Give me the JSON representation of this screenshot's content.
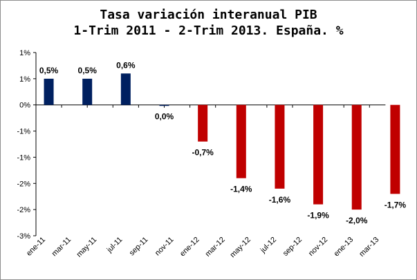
{
  "chart_data": {
    "type": "bar",
    "title_line1": "Tasa variación interanual PIB",
    "title_line2": "1-Trim 2011 - 2-Trim 2013. España. %",
    "xlabel": "",
    "ylabel": "",
    "categories": [
      "ene-11",
      "mar-11",
      "may-11",
      "jul-11",
      "sep-11",
      "nov-11",
      "ene-12",
      "mar-12",
      "may-12",
      "jul-12",
      "sep-12",
      "nov-12",
      "ene-13",
      "mar-13"
    ],
    "bars": [
      {
        "category_index": 0.5,
        "value": 0.5,
        "label": "0,5%"
      },
      {
        "category_index": 2.0,
        "value": 0.5,
        "label": "0,5%"
      },
      {
        "category_index": 3.5,
        "value": 0.6,
        "label": "0,6%"
      },
      {
        "category_index": 5.0,
        "value": 0.0,
        "label": "0,0%"
      },
      {
        "category_index": 6.5,
        "value": -0.7,
        "label": "-0,7%"
      },
      {
        "category_index": 8.0,
        "value": -1.4,
        "label": "-1,4%"
      },
      {
        "category_index": 9.5,
        "value": -1.6,
        "label": "-1,6%"
      },
      {
        "category_index": 11.0,
        "value": -1.9,
        "label": "-1,9%"
      },
      {
        "category_index": 12.5,
        "value": -2.0,
        "label": "-2,0%"
      },
      {
        "category_index": 14.0,
        "value": -1.7,
        "label": "-1,7%"
      }
    ],
    "y_ticks": [
      {
        "value": 1.0,
        "label": "1%"
      },
      {
        "value": 0.5,
        "label": "1%"
      },
      {
        "value": 0.0,
        "label": "0%"
      },
      {
        "value": -0.5,
        "label": "-1%"
      },
      {
        "value": -1.0,
        "label": "-1%"
      },
      {
        "value": -1.5,
        "label": "-2%"
      },
      {
        "value": -2.0,
        "label": "-2%"
      },
      {
        "value": -2.5,
        "label": "-3%"
      }
    ],
    "ylim": [
      -2.5,
      1.0
    ],
    "colors": {
      "positive": "#002060",
      "negative": "#c00000",
      "axis": "#000000"
    },
    "grid": false
  }
}
